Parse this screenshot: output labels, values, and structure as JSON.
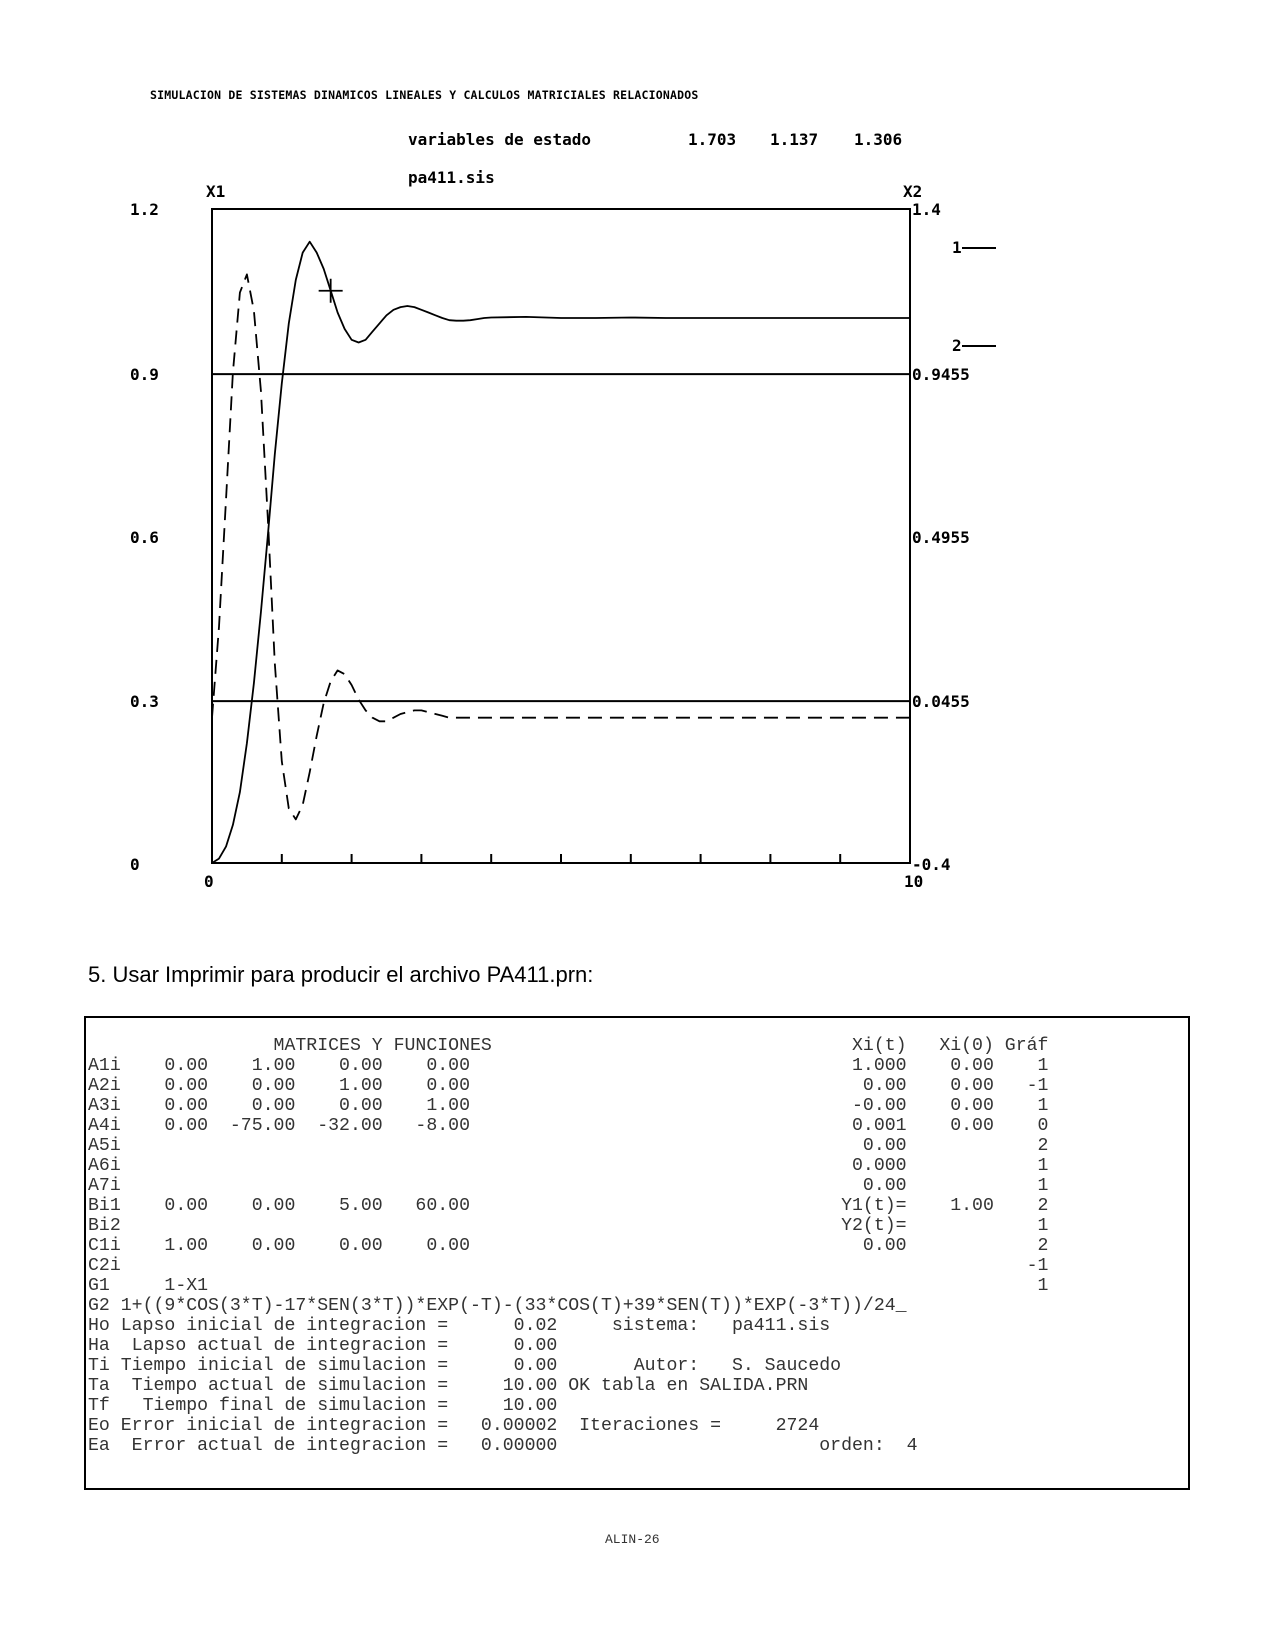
{
  "header": "SIMULACION DE SISTEMAS DINAMICOS LINEALES Y CALCULOS MATRICIALES RELACIONADOS",
  "plot": {
    "title": "variables de estado",
    "values": [
      "1.703",
      "1.137",
      "1.306"
    ],
    "file": "pa411.sis",
    "left_axis_label": "X1",
    "right_axis_label": "X2",
    "left_ticks": [
      "1.2",
      "0.9",
      "0.6",
      "0.3",
      "0"
    ],
    "right_ticks": [
      "1.4",
      "0.9455",
      "0.4955",
      "0.0455",
      "-0.4"
    ],
    "x_start": "0",
    "x_end": "10",
    "legend": [
      "1",
      "2"
    ]
  },
  "chart_data": {
    "type": "line",
    "title": "variables de estado",
    "xlim": [
      0,
      10
    ],
    "ylim_left": [
      0,
      1.2
    ],
    "ylim_right": [
      -0.4,
      1.4
    ],
    "series": [
      {
        "name": "1",
        "axis": "left",
        "style": "solid",
        "x": [
          0,
          0.1,
          0.2,
          0.3,
          0.4,
          0.5,
          0.6,
          0.7,
          0.8,
          0.9,
          1.0,
          1.1,
          1.2,
          1.3,
          1.4,
          1.5,
          1.6,
          1.7,
          1.8,
          1.9,
          2.0,
          2.1,
          2.2,
          2.3,
          2.4,
          2.5,
          2.6,
          2.7,
          2.8,
          2.9,
          3.0,
          3.1,
          3.2,
          3.3,
          3.4,
          3.5,
          3.6,
          3.7,
          3.8,
          3.9,
          4.0,
          4.5,
          5.0,
          5.5,
          6.0,
          6.5,
          7.0,
          7.5,
          8.0,
          8.5,
          9.0,
          9.5,
          10.0
        ],
        "y": [
          0,
          0.008,
          0.03,
          0.07,
          0.13,
          0.22,
          0.33,
          0.46,
          0.6,
          0.75,
          0.88,
          0.99,
          1.07,
          1.12,
          1.14,
          1.12,
          1.09,
          1.05,
          1.01,
          0.98,
          0.96,
          0.955,
          0.96,
          0.975,
          0.99,
          1.005,
          1.015,
          1.02,
          1.022,
          1.02,
          1.015,
          1.01,
          1.005,
          1.0,
          0.996,
          0.995,
          0.995,
          0.996,
          0.998,
          1.0,
          1.001,
          1.002,
          1.0,
          1.0,
          1.001,
          1.0,
          1.0,
          1.0,
          1.0,
          1.0,
          1.0,
          1.0,
          1.0
        ]
      },
      {
        "name": "2",
        "axis": "right",
        "style": "dashed",
        "x": [
          0,
          0.1,
          0.2,
          0.3,
          0.4,
          0.5,
          0.6,
          0.7,
          0.8,
          0.9,
          1.0,
          1.1,
          1.2,
          1.3,
          1.4,
          1.5,
          1.6,
          1.7,
          1.8,
          1.9,
          2.0,
          2.1,
          2.2,
          2.3,
          2.4,
          2.5,
          2.6,
          2.7,
          2.8,
          2.9,
          3.0,
          3.1,
          3.2,
          3.3,
          3.4,
          3.5,
          3.6,
          3.7,
          3.8,
          3.9,
          4.0,
          4.5,
          5.0,
          5.5,
          6.0,
          6.5,
          7.0,
          7.5,
          8.0,
          8.5,
          9.0,
          9.5,
          10.0
        ],
        "y": [
          0.0,
          0.25,
          0.6,
          0.95,
          1.17,
          1.22,
          1.12,
          0.9,
          0.55,
          0.15,
          -0.12,
          -0.25,
          -0.28,
          -0.24,
          -0.15,
          -0.05,
          0.04,
          0.1,
          0.13,
          0.12,
          0.09,
          0.05,
          0.02,
          0.0,
          -0.01,
          -0.01,
          0.0,
          0.01,
          0.015,
          0.02,
          0.02,
          0.015,
          0.01,
          0.005,
          0.0,
          0.0,
          0.0,
          0.0,
          0.0,
          0.0,
          0.0,
          0.0,
          0.0,
          0.0,
          0.0,
          0.0,
          0.0,
          0.0,
          0.0,
          0.0,
          0.0,
          0.0,
          0.0
        ]
      }
    ],
    "hlines_right": [
      0.9455,
      0.0455
    ],
    "cursor": {
      "x": 1.7,
      "series": "1"
    }
  },
  "caption": "5. Usar Imprimir para producir el archivo PA411.prn:",
  "listing": {
    "lines": [
      "                 MATRICES Y FUNCIONES                                 Xi(t)   Xi(0) Gráf",
      "A1i    0.00    1.00    0.00    0.00                                   1.000    0.00    1",
      "A2i    0.00    0.00    1.00    0.00                                    0.00    0.00   -1",
      "A3i    0.00    0.00    0.00    1.00                                   -0.00    0.00    1",
      "A4i    0.00  -75.00  -32.00   -8.00                                   0.001    0.00    0",
      "A5i                                                                    0.00            2",
      "A6i                                                                   0.000            1",
      "A7i                                                                    0.00            1",
      "Bi1    0.00    0.00    5.00   60.00                                  Y1(t)=    1.00    2",
      "Bi2                                                                  Y2(t)=            1",
      "C1i    1.00    0.00    0.00    0.00                                    0.00            2",
      "C2i                                                                                   -1",
      "G1     1-X1                                                                            1",
      "G2 1+((9*COS(3*T)-17*SEN(3*T))*EXP(-T)-(33*COS(T)+39*SEN(T))*EXP(-3*T))/24_",
      "Ho Lapso inicial de integracion =      0.02     sistema:   pa411.sis",
      "Ha  Lapso actual de integracion =      0.00",
      "Ti Tiempo inicial de simulacion =      0.00       Autor:   S. Saucedo",
      "Ta  Tiempo actual de simulacion =     10.00 OK tabla en SALIDA.PRN",
      "Tf   Tiempo final de simulacion =     10.00",
      "Eo Error inicial de integracion =   0.00002  Iteraciones =     2724",
      "Ea  Error actual de integracion =   0.00000                        orden:  4"
    ]
  },
  "footer": "ALIN-26"
}
